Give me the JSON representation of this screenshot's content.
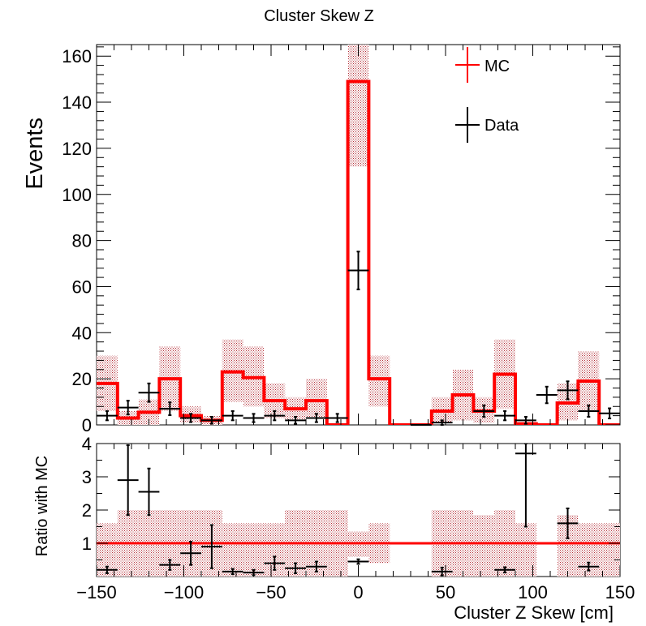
{
  "title": "Cluster Skew Z",
  "colors": {
    "mc": "#ff0000",
    "data": "#000000",
    "band": "#b22b34",
    "ref_line": "#ff0000"
  },
  "chart_data": [
    {
      "type": "histogram",
      "panel": "main",
      "title": "Cluster Skew Z",
      "ylabel": "Events",
      "xlim": [
        -150,
        150
      ],
      "ylim": [
        0,
        165
      ],
      "yticks": [
        "0",
        "20",
        "40",
        "60",
        "80",
        "100",
        "120",
        "140",
        "160"
      ],
      "bin_edges": [
        -150,
        -138,
        -126,
        -114,
        -102,
        -90,
        -78,
        -66,
        -54,
        -42,
        -30,
        -18,
        -6,
        6,
        18,
        30,
        42,
        54,
        66,
        78,
        90,
        102,
        114,
        126,
        138,
        150
      ],
      "legend": [
        "MC",
        "Data"
      ],
      "legend_position": "top-right",
      "series": [
        {
          "name": "MC",
          "kind": "step",
          "values": [
            18,
            3,
            5.5,
            20,
            4,
            2,
            23,
            20.5,
            10.5,
            7,
            10.5,
            0,
            149,
            20,
            0,
            0,
            6,
            13,
            6,
            22,
            0.5,
            0,
            9.5,
            19,
            0
          ],
          "band_low": [
            6,
            0,
            0,
            6,
            1,
            0,
            10,
            8,
            3,
            2,
            3,
            0,
            112,
            8,
            0,
            0,
            1,
            2,
            1,
            7,
            0,
            0,
            2,
            6,
            0
          ],
          "band_high": [
            30,
            6,
            11,
            34,
            8,
            4,
            37,
            34,
            18,
            12,
            20,
            0,
            165,
            30,
            0,
            0,
            12,
            24,
            12,
            37,
            1,
            0,
            18,
            32,
            0
          ]
        },
        {
          "name": "Data",
          "kind": "points",
          "points": [
            {
              "x": -144,
              "y": 4,
              "err": 2
            },
            {
              "x": -132,
              "y": 7.5,
              "err": 3
            },
            {
              "x": -120,
              "y": 14,
              "err": 4
            },
            {
              "x": -108,
              "y": 7,
              "err": 2.8
            },
            {
              "x": -96,
              "y": 3,
              "err": 1.8
            },
            {
              "x": -84,
              "y": 2,
              "err": 1.5
            },
            {
              "x": -72,
              "y": 4,
              "err": 2
            },
            {
              "x": -60,
              "y": 3,
              "err": 1.8
            },
            {
              "x": -48,
              "y": 4,
              "err": 2
            },
            {
              "x": -36,
              "y": 2,
              "err": 1.5
            },
            {
              "x": -24,
              "y": 3,
              "err": 1.8
            },
            {
              "x": -12,
              "y": 3,
              "err": 1.8
            },
            {
              "x": 0,
              "y": 67,
              "err": 8.2
            },
            {
              "x": 36,
              "y": 0,
              "err": 0
            },
            {
              "x": 48,
              "y": 1,
              "err": 1
            },
            {
              "x": 72,
              "y": 6,
              "err": 2.5
            },
            {
              "x": 84,
              "y": 4,
              "err": 2
            },
            {
              "x": 96,
              "y": 2,
              "err": 1.5
            },
            {
              "x": 108,
              "y": 13,
              "err": 3.6
            },
            {
              "x": 120,
              "y": 15,
              "err": 3.9
            },
            {
              "x": 132,
              "y": 6,
              "err": 2.5
            },
            {
              "x": 144,
              "y": 5,
              "err": 2.2
            }
          ]
        }
      ]
    },
    {
      "type": "scatter",
      "panel": "ratio",
      "xlabel": "Cluster Z Skew [cm]",
      "ylabel": "Ratio with MC",
      "xlim": [
        -150,
        150
      ],
      "ylim": [
        0,
        4
      ],
      "xticks": [
        "−150",
        "−100",
        "−50",
        "0",
        "50",
        "100",
        "150"
      ],
      "yticks": [
        "1",
        "2",
        "3",
        "4"
      ],
      "reference_line": 1,
      "band_low": [
        0,
        0,
        0,
        0,
        0,
        0,
        0,
        0,
        0,
        0,
        0,
        0,
        0.6,
        0.4,
        0,
        0,
        0,
        0,
        0,
        0,
        0,
        0,
        0,
        0,
        0
      ],
      "band_high": [
        1.6,
        2,
        2,
        2,
        2,
        2,
        1.6,
        1.6,
        1.6,
        2,
        2,
        2,
        1.35,
        1.6,
        0,
        0,
        2,
        2,
        1.85,
        2,
        1.6,
        0,
        1.85,
        1.6,
        1.6
      ],
      "series": [
        {
          "name": "Ratio",
          "points": [
            {
              "x": -144,
              "y": 0.2,
              "err": 0.1
            },
            {
              "x": -132,
              "y": 2.9,
              "err": 1.05
            },
            {
              "x": -120,
              "y": 2.55,
              "err": 0.7
            },
            {
              "x": -108,
              "y": 0.35,
              "err": 0.15
            },
            {
              "x": -96,
              "y": 0.7,
              "err": 0.35
            },
            {
              "x": -84,
              "y": 0.9,
              "err": 0.65
            },
            {
              "x": -72,
              "y": 0.15,
              "err": 0.08
            },
            {
              "x": -60,
              "y": 0.12,
              "err": 0.08
            },
            {
              "x": -48,
              "y": 0.4,
              "err": 0.2
            },
            {
              "x": -36,
              "y": 0.25,
              "err": 0.15
            },
            {
              "x": -24,
              "y": 0.3,
              "err": 0.15
            },
            {
              "x": 0,
              "y": 0.45,
              "err": 0.07
            },
            {
              "x": 48,
              "y": 0.15,
              "err": 0.12
            },
            {
              "x": 84,
              "y": 0.2,
              "err": 0.08
            },
            {
              "x": 96,
              "y": 3.7,
              "err": 2.2
            },
            {
              "x": 120,
              "y": 1.6,
              "err": 0.45
            },
            {
              "x": 132,
              "y": 0.3,
              "err": 0.12
            }
          ]
        }
      ]
    }
  ]
}
